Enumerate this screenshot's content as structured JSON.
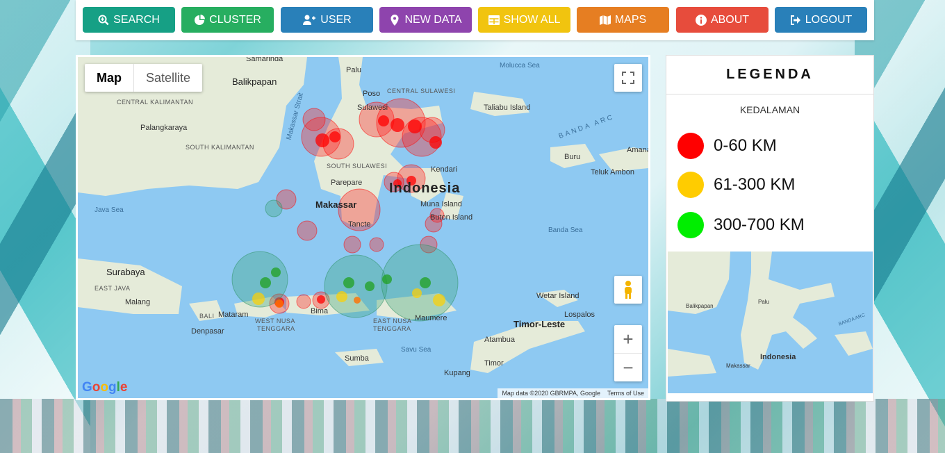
{
  "nav": {
    "buttons": [
      {
        "label": "SEARCH",
        "icon": "search-icon",
        "color": "#16a085"
      },
      {
        "label": "CLUSTER",
        "icon": "pie-chart-icon",
        "color": "#27ae60"
      },
      {
        "label": "USER",
        "icon": "user-plus-icon",
        "color": "#2980b9"
      },
      {
        "label": "NEW DATA",
        "icon": "map-marker-icon",
        "color": "#8e44ad"
      },
      {
        "label": "SHOW ALL",
        "icon": "table-icon",
        "color": "#f1c40f"
      },
      {
        "label": "MAPS",
        "icon": "map-icon",
        "color": "#e67e22"
      },
      {
        "label": "ABOUT",
        "icon": "info-circle-icon",
        "color": "#e74c3c"
      },
      {
        "label": "LOGOUT",
        "icon": "sign-out-icon",
        "color": "#2980b9"
      }
    ]
  },
  "map": {
    "type_map": "Map",
    "type_satellite": "Satellite",
    "attribution": "Map data ©2020 GBRMPA, Google",
    "terms": "Terms of Use",
    "logo": "Google",
    "labels": {
      "samarinda": "Samarinda",
      "balikpapan": "Balikpapan",
      "central_kalimantan": "CENTRAL KALIMANTAN",
      "palangkaraya": "Palangkaraya",
      "south_kalimantan": "SOUTH KALIMANTAN",
      "makassar_strait": "Makassar Strait",
      "palu": "Palu",
      "poso": "Poso",
      "central_sulawesi": "CENTRAL SULAWESI",
      "sulawesi": "Sulawesi",
      "molucca_sea": "Molucca Sea",
      "taliabu": "Taliabu Island",
      "banda_arc": "BANDA ARC",
      "buru": "Buru",
      "amana": "Amana",
      "teluk_ambon": "Teluk Ambon",
      "south_sulawesi": "SOUTH SULAWESI",
      "kendari": "Kendari",
      "parepare": "Parepare",
      "indonesia": "Indonesia",
      "makassar": "Makassar",
      "muna": "Muna Island",
      "buton": "Buton Island",
      "java_sea": "Java Sea",
      "tancte": "Tancte",
      "banda_sea": "Banda Sea",
      "surabaya": "Surabaya",
      "east_java": "EAST JAVA",
      "malang": "Malang",
      "bali": "BALI",
      "mataram": "Mataram",
      "denpasar": "Denpasar",
      "west_nusa": "WEST NUSA",
      "tenggara_w": "TENGGARA",
      "bima": "Bima",
      "east_nusa": "EAST NUSA",
      "tenggara_e": "TENGGARA",
      "maumere": "Maumere",
      "wetar": "Wetar Island",
      "timor_leste": "Timor-Leste",
      "lospalos": "Lospalos",
      "atambua": "Atambua",
      "savu_sea": "Savu Sea",
      "sumba": "Sumba",
      "timor": "Timor",
      "kupang": "Kupang"
    }
  },
  "legend": {
    "title": "LEGENDA",
    "subtitle": "KEDALAMAN",
    "items": [
      {
        "label": "0-60 KM",
        "color": "#ff0000"
      },
      {
        "label": "61-300 KM",
        "color": "#ffcc00"
      },
      {
        "label": "300-700 KM",
        "color": "#00ee00"
      }
    ],
    "minimap_labels": {
      "balikpapan": "Balikpapan",
      "indonesia": "Indonesia",
      "makassar": "Makassar",
      "palu": "Palu",
      "banda_arc": "BANDA ARC"
    }
  }
}
